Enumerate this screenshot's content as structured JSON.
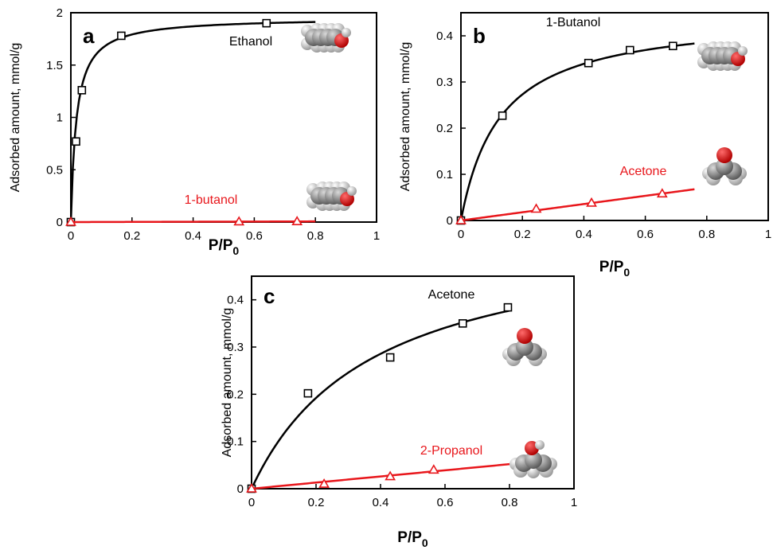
{
  "chart_data": [
    {
      "panel": "a",
      "type": "scatter",
      "xlabel": "P/P",
      "xlabel_sub": "0",
      "ylabel": "Adsorbed amount, mmol/g",
      "xlim": [
        0,
        1
      ],
      "ylim": [
        0,
        2
      ],
      "xticks": [
        "0",
        "0.2",
        "0.4",
        "0.6",
        "0.8",
        "1"
      ],
      "yticks": [
        "0",
        "0.5",
        "1",
        "1.5",
        "2"
      ],
      "grid": false,
      "series": [
        {
          "name": "Ethanol",
          "color": "#000000",
          "marker": "square",
          "x": [
            0.0,
            0.017,
            0.036,
            0.165,
            0.64
          ],
          "y": [
            0.0,
            0.77,
            1.26,
            1.78,
            1.9
          ],
          "fit": {
            "model": "langmuir",
            "qmax": 1.955,
            "K": 55,
            "xmax": 0.8
          }
        },
        {
          "name": "1-butanol",
          "color": "#e8161b",
          "marker": "triangle",
          "x": [
            0.0,
            0.55,
            0.74
          ],
          "y": [
            0.0,
            0.004,
            0.006
          ],
          "fit": {
            "model": "linear",
            "slope": 0.008,
            "xmax": 0.8
          }
        }
      ]
    },
    {
      "panel": "b",
      "type": "scatter",
      "xlabel": "P/P",
      "xlabel_sub": "0",
      "ylabel": "Adsorbed amount, mmol/g",
      "xlim": [
        0,
        1
      ],
      "ylim": [
        0,
        0.45
      ],
      "xticks": [
        "0",
        "0.2",
        "0.4",
        "0.6",
        "0.8",
        "1"
      ],
      "yticks": [
        "0",
        "0.1",
        "0.2",
        "0.3",
        "0.4"
      ],
      "grid": false,
      "series": [
        {
          "name": "1-Butanol",
          "color": "#000000",
          "marker": "square",
          "x": [
            0.0,
            0.135,
            0.415,
            0.55,
            0.69
          ],
          "y": [
            0.0,
            0.227,
            0.341,
            0.369,
            0.378
          ],
          "fit": {
            "model": "langmuir",
            "qmax": 0.448,
            "K": 7.8,
            "xmax": 0.76
          }
        },
        {
          "name": "Acetone",
          "color": "#e8161b",
          "marker": "triangle",
          "x": [
            0.0,
            0.245,
            0.425,
            0.655
          ],
          "y": [
            0.0,
            0.025,
            0.038,
            0.058
          ],
          "fit": {
            "model": "linear",
            "slope": 0.089,
            "xmax": 0.76
          }
        }
      ]
    },
    {
      "panel": "c",
      "type": "scatter",
      "xlabel": "P/P",
      "xlabel_sub": "0",
      "ylabel": "Adsorbed amount, mmol/g",
      "xlim": [
        0,
        1
      ],
      "ylim": [
        0,
        0.45
      ],
      "xticks": [
        "0",
        "0.2",
        "0.4",
        "0.6",
        "0.8",
        "1"
      ],
      "yticks": [
        "0",
        "0.1",
        "0.2",
        "0.3",
        "0.4"
      ],
      "grid": false,
      "series": [
        {
          "name": "Acetone",
          "color": "#000000",
          "marker": "square",
          "x": [
            0.0,
            0.175,
            0.43,
            0.655,
            0.795
          ],
          "y": [
            0.0,
            0.202,
            0.278,
            0.35,
            0.384
          ],
          "fit": {
            "model": "langmuir",
            "qmax": 0.555,
            "K": 2.65,
            "xmax": 0.8
          }
        },
        {
          "name": "2-Propanol",
          "color": "#e8161b",
          "marker": "triangle",
          "x": [
            0.0,
            0.225,
            0.43,
            0.565
          ],
          "y": [
            0.0,
            0.01,
            0.026,
            0.04
          ],
          "fit": {
            "model": "linear",
            "slope": 0.065,
            "xmax": 0.8
          }
        }
      ]
    }
  ]
}
